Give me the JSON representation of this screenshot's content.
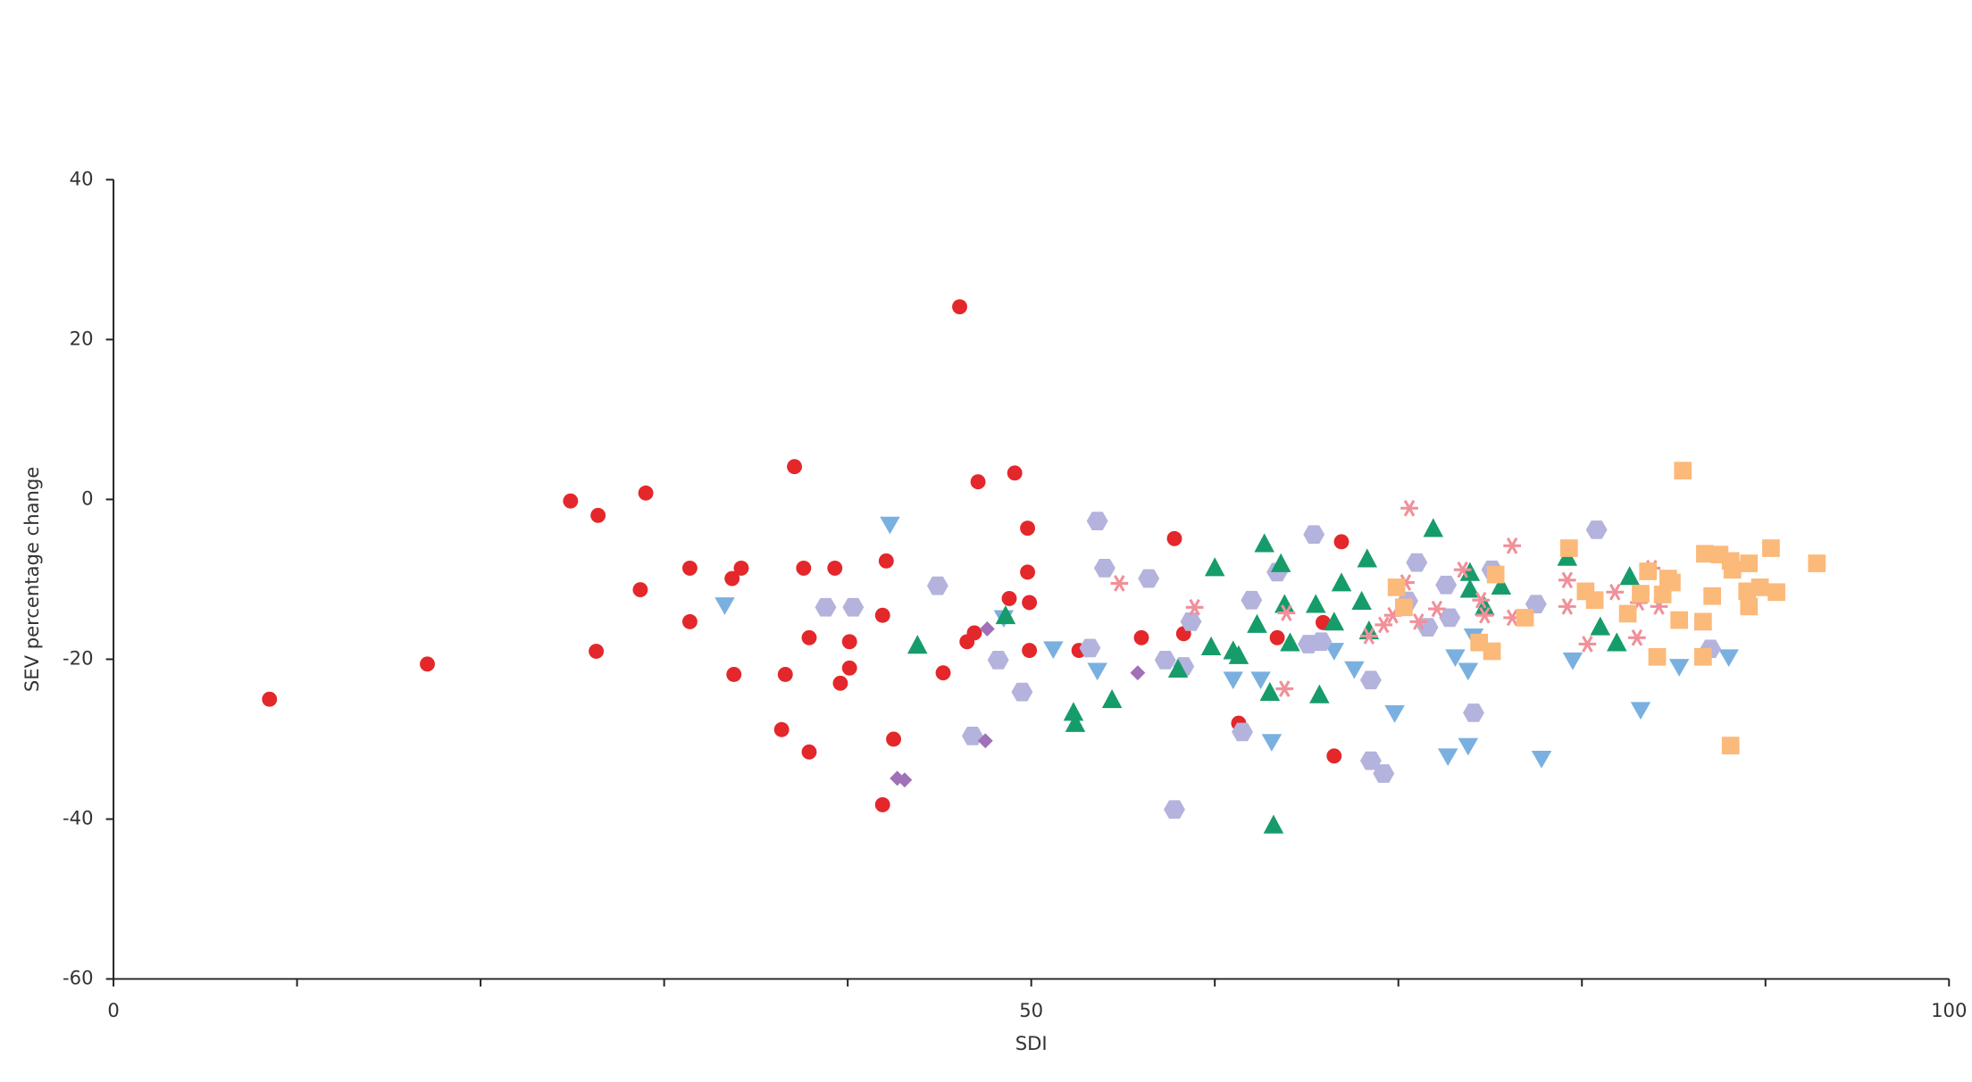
{
  "chart_data": {
    "type": "scatter",
    "x_label": "SDI",
    "y_label": "SEV percentage change",
    "xlim": [
      0,
      100
    ],
    "ylim": [
      -60,
      40
    ],
    "xticks": [
      0,
      50,
      100
    ],
    "x_minor_ticks": [
      10,
      20,
      30,
      40,
      60,
      70,
      80,
      90
    ],
    "yticks": [
      40,
      20,
      0,
      -20,
      -40,
      -60
    ],
    "series": [
      {
        "color": "#e3272b",
        "marker": "circle",
        "x": [
          8.5,
          17.1,
          24.9,
          26.4,
          26.3,
          28.7,
          29,
          31.4,
          31.4,
          33.7,
          34.2,
          33.8,
          36.4,
          36.6,
          37.1,
          37.6,
          37.9,
          37.9,
          39.3,
          39.6,
          40.1,
          40.1,
          41.9,
          42.1,
          42.5,
          41.9,
          45.2,
          46.1,
          46.5,
          46.9,
          47.1,
          48.8,
          49.1,
          49.8,
          49.8,
          49.9,
          49.9,
          52.6,
          56,
          57.8,
          58.3,
          61.3,
          63.4,
          65.9,
          66.5,
          66.9
        ],
        "values": [
          -25,
          -20.6,
          -0.2,
          -2,
          -19,
          -11.3,
          0.8,
          -8.6,
          -15.3,
          -9.9,
          -8.6,
          -21.9,
          -28.8,
          -21.9,
          4.1,
          -8.6,
          -17.3,
          -31.6,
          -8.6,
          -23,
          -17.8,
          -21.1,
          -14.5,
          -7.7,
          -30,
          -38.2,
          -21.7,
          24.1,
          -17.8,
          -16.7,
          2.2,
          -12.4,
          3.3,
          -3.6,
          -9.1,
          -12.9,
          -18.9,
          -18.9,
          -17.3,
          -4.9,
          -16.8,
          -28,
          -17.3,
          -15.4,
          -32.1,
          -5.3
        ]
      },
      {
        "color": "#7ab0e0",
        "marker": "triangle-down",
        "x": [
          42.3,
          33.3,
          48.5,
          51.2,
          53.6,
          61,
          62.5,
          63.1,
          66.5,
          67.6,
          69.8,
          72.7,
          73.1,
          73.8,
          73.8,
          74.1,
          77.8,
          79.5,
          83.2,
          85.3,
          88
        ],
        "values": [
          -3.1,
          -13.2,
          -14.8,
          -18.7,
          -21.4,
          -22.5,
          -22.5,
          -30.3,
          -18.9,
          -21.2,
          -26.7,
          -32.1,
          -19.7,
          -21.4,
          -30.8,
          -17.1,
          -32.4,
          -20.1,
          -26.3,
          -20.9,
          -19.7
        ]
      },
      {
        "color": "#b3b3dd",
        "marker": "hexagon",
        "x": [
          38.8,
          40.3,
          44.9,
          46.8,
          48.2,
          49.5,
          53.2,
          53.6,
          54,
          56.4,
          57.3,
          57.8,
          58.3,
          58.7,
          61.5,
          62,
          63.4,
          65.1,
          65.4,
          65.8,
          68.5,
          68.5,
          69.2,
          70.5,
          71,
          71.6,
          72.6,
          72.8,
          74.1,
          75.1,
          77.5,
          80.8,
          87
        ],
        "values": [
          -13.5,
          -13.5,
          -10.8,
          -29.6,
          -20.1,
          -24.1,
          -18.6,
          -2.7,
          -8.6,
          -9.9,
          -20.1,
          -38.8,
          -20.9,
          -15.3,
          -29.1,
          -12.6,
          -9.1,
          -18.1,
          -4.4,
          -17.8,
          -22.6,
          -32.7,
          -34.3,
          -12.7,
          -7.9,
          -16,
          -10.7,
          -14.8,
          -26.7,
          -8.8,
          -13.1,
          -3.8,
          -18.7
        ]
      },
      {
        "color": "#a070b8",
        "marker": "diamond",
        "x": [
          42.7,
          43.1,
          47.5,
          47.6,
          55.8
        ],
        "values": [
          -34.9,
          -35.1,
          -30.2,
          -16.2,
          -21.7
        ]
      },
      {
        "color": "#169c6a",
        "marker": "triangle-up",
        "x": [
          43.8,
          48.6,
          52.3,
          52.4,
          54.4,
          58,
          59.8,
          60,
          61,
          61.3,
          62.3,
          62.7,
          63,
          63.2,
          63.6,
          63.8,
          64.1,
          65.5,
          65.7,
          66.5,
          66.9,
          68,
          68.3,
          68.4,
          71.9,
          73.9,
          73.9,
          74.7,
          75.6,
          79.2,
          81,
          81.9,
          82.6
        ],
        "values": [
          -18.2,
          -14.5,
          -26.6,
          -28,
          -25,
          -21.2,
          -18.4,
          -8.5,
          -18.9,
          -19.5,
          -15.6,
          -5.5,
          -24.1,
          -40.7,
          -8,
          -13.1,
          -17.9,
          -13.1,
          -24.4,
          -15.3,
          -10.4,
          -12.7,
          -7.4,
          -16.4,
          -3.6,
          -9.1,
          -11.2,
          -13.4,
          -10.8,
          -7.2,
          -15.9,
          -17.9,
          -9.6
        ]
      },
      {
        "color": "#f0909a",
        "marker": "asterisk",
        "x": [
          54.8,
          58.9,
          63.8,
          63.9,
          68.4,
          69.2,
          69.7,
          70.4,
          70.6,
          71.1,
          72.1,
          73.5,
          74.5,
          74.7,
          76.2,
          76.2,
          79.2,
          79.2,
          80.3,
          81.8,
          83.1,
          83,
          83.8,
          84.2
        ],
        "values": [
          -10.5,
          -13.5,
          -23.7,
          -14.2,
          -17.1,
          -15.7,
          -14.5,
          -10.4,
          -1.1,
          -15.3,
          -13.7,
          -8.8,
          -12.6,
          -14.5,
          -5.8,
          -14.8,
          -10.1,
          -13.4,
          -18.1,
          -11.6,
          -12.9,
          -17.3,
          -8.6,
          -13.4
        ]
      },
      {
        "color": "#fbb97a",
        "marker": "square",
        "x": [
          69.9,
          70.3,
          74.4,
          75.1,
          75.3,
          76.9,
          79.3,
          80.2,
          80.7,
          82.5,
          83.2,
          83.6,
          84.1,
          84.4,
          84.7,
          84.9,
          85.3,
          85.5,
          86.6,
          86.6,
          86.7,
          87.1,
          87.5,
          88.1,
          88.1,
          88.2,
          89,
          89.1,
          89.1,
          89.7,
          90.3,
          90.6,
          92.8
        ],
        "values": [
          -11,
          -13.5,
          -17.9,
          -19,
          -9.4,
          -14.8,
          -6.1,
          -11.5,
          -12.6,
          -14.3,
          -11.8,
          -9,
          -19.7,
          -11.9,
          -9.9,
          -10.4,
          -15.1,
          3.6,
          -15.3,
          -19.7,
          -6.8,
          -12.1,
          -6.9,
          -7.7,
          -30.8,
          -8.8,
          -11.5,
          -13.4,
          -8,
          -11,
          -6.1,
          -11.6,
          -8
        ]
      }
    ]
  }
}
